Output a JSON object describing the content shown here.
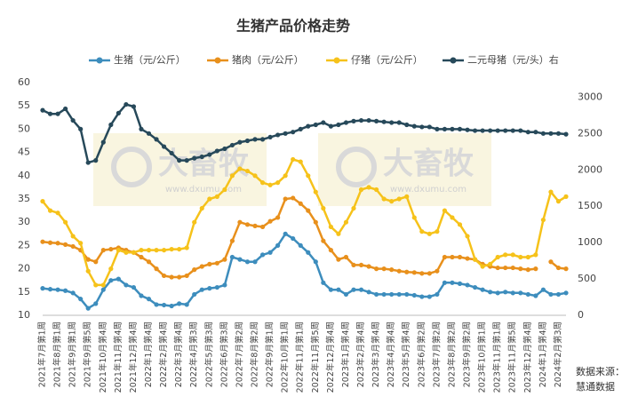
{
  "chart_data": {
    "type": "line",
    "title": "生猪产品价格走势",
    "categories": [
      "2021年7月第1周",
      null,
      "2021年8月第1周",
      null,
      "2021年9月第1周",
      null,
      "2021年9月第5周",
      null,
      "2021年10月第4周",
      null,
      "2021年11月第4周",
      null,
      "2021年12月第4周",
      null,
      "2022年1月第4周",
      null,
      "2022年2月第4周",
      null,
      "2022年3月第4周",
      null,
      "2022年4月第3周",
      null,
      "2022年5月第3周",
      null,
      "2022年6月第3周",
      null,
      "2022年7月第2周",
      null,
      "2022年8月第2周",
      null,
      "2022年9月第1周",
      null,
      "2022年10月第1周",
      null,
      "2022年11月第1周",
      null,
      "2022年11月第5周",
      null,
      "2022年12月第4周",
      null,
      "2023年1月第4周",
      null,
      "2023年2月第4周",
      null,
      "2023年3月第4周",
      null,
      "2023年4月第4周",
      null,
      "2023年5月第4周",
      null,
      "2023年6月第2周",
      null,
      "2023年7月第2周",
      null,
      "2023年8月第2周",
      null,
      "2023年9月第2周",
      null,
      "2023年10月第1周",
      null,
      "2023年11月第1周",
      null,
      "2023年11月第5周",
      null,
      "2023年12月第4周",
      null,
      "2024年1月第4周",
      null,
      "2024年2月第3周",
      null
    ],
    "series": [
      {
        "name": "生猪（元/公斤）",
        "color": "#3d8dbd",
        "values": [
          15.8,
          15.6,
          15.5,
          15.3,
          14.8,
          13.5,
          11.5,
          12.5,
          15.5,
          17.5,
          17.8,
          16.5,
          16,
          14.2,
          13.5,
          12.3,
          12.2,
          12,
          12.5,
          12.3,
          14.5,
          15.5,
          15.8,
          16,
          16.5,
          22.5,
          22,
          21.5,
          21.5,
          23,
          23.5,
          25,
          27.5,
          26.5,
          25,
          23.5,
          21.5,
          17,
          15.5,
          15.5,
          14.5,
          15.5,
          15.5,
          15,
          14.5,
          14.5,
          14.5,
          14.5,
          14.5,
          14.3,
          14,
          14,
          14.5,
          17,
          17,
          16.8,
          16.5,
          16,
          15.5,
          15,
          14.8,
          15,
          14.8,
          14.8,
          14.5,
          14.2,
          15.5,
          14.5,
          14.5,
          14.8
        ]
      },
      {
        "name": "猪肉（元/公斤）",
        "color": "#e8901c",
        "values": [
          25.8,
          25.6,
          25.5,
          25.2,
          24.8,
          24,
          22,
          21.5,
          24,
          24.2,
          24.5,
          24,
          23.5,
          22.5,
          21.5,
          20,
          18.5,
          18.2,
          18.2,
          18.5,
          19.8,
          20.5,
          21,
          21.2,
          22,
          26,
          30,
          29.5,
          29.2,
          29,
          30.2,
          31,
          35,
          35.2,
          34,
          32.5,
          30,
          26,
          24,
          22,
          22.5,
          20.8,
          20.8,
          20.5,
          20,
          20,
          19.8,
          19.5,
          19.3,
          19.2,
          19,
          19,
          19.5,
          22.5,
          22.5,
          22.5,
          22.2,
          22,
          21,
          20.5,
          20.2,
          20.2,
          20.2,
          20,
          19.8,
          20,
          null,
          21.5,
          20.2,
          20
        ]
      },
      {
        "name": "仔猪（元/公斤）",
        "color": "#f6c21a",
        "values": [
          34.5,
          32.5,
          32,
          30,
          27,
          25.5,
          19.5,
          16.5,
          16.5,
          20,
          24,
          23.5,
          23.5,
          24,
          24,
          24,
          24,
          24.2,
          24.2,
          24.5,
          30,
          33,
          35,
          35.5,
          37,
          40,
          41.5,
          41,
          40,
          38.5,
          38,
          38.5,
          40,
          43.5,
          43,
          40,
          36.5,
          33,
          29,
          27.5,
          30,
          33,
          37,
          37.5,
          37,
          35,
          34.5,
          35,
          35.5,
          31,
          28,
          27.5,
          28,
          32.5,
          31,
          29.5,
          27,
          22,
          20.5,
          21,
          22.5,
          23,
          23,
          22.5,
          22.5,
          23,
          30.5,
          36.5,
          34.5,
          35.5
        ]
      },
      {
        "name": "二元母猪（元/头）右",
        "color": "#27495a",
        "axis": "y2",
        "values": [
          2820,
          2770,
          2770,
          2840,
          2680,
          2560,
          2100,
          2130,
          2380,
          2620,
          2780,
          2900,
          2870,
          2560,
          2500,
          2420,
          2320,
          2230,
          2130,
          2130,
          2160,
          2180,
          2210,
          2260,
          2290,
          2340,
          2380,
          2400,
          2420,
          2420,
          2450,
          2480,
          2500,
          2520,
          2560,
          2600,
          2620,
          2650,
          2600,
          2620,
          2650,
          2670,
          2680,
          2680,
          2670,
          2660,
          2650,
          2650,
          2620,
          2600,
          2590,
          2590,
          2560,
          2560,
          2560,
          2560,
          2550,
          2540,
          2540,
          2540,
          2540,
          2540,
          2540,
          2540,
          2520,
          2520,
          2500,
          2500,
          2500,
          2490
        ]
      }
    ],
    "ylim": [
      10,
      60
    ],
    "yticks": [
      10,
      15,
      20,
      25,
      30,
      35,
      40,
      45,
      50,
      55,
      60
    ],
    "y2lim": [
      0,
      3200
    ],
    "y2ticks": [
      0,
      500,
      1000,
      1500,
      2000,
      2500,
      3000
    ],
    "grid": false,
    "legend": "top",
    "watermark": {
      "name": "大畜牧",
      "url": "www.dxumu.com"
    },
    "source": [
      "数据来源：",
      "慧通数据"
    ]
  }
}
